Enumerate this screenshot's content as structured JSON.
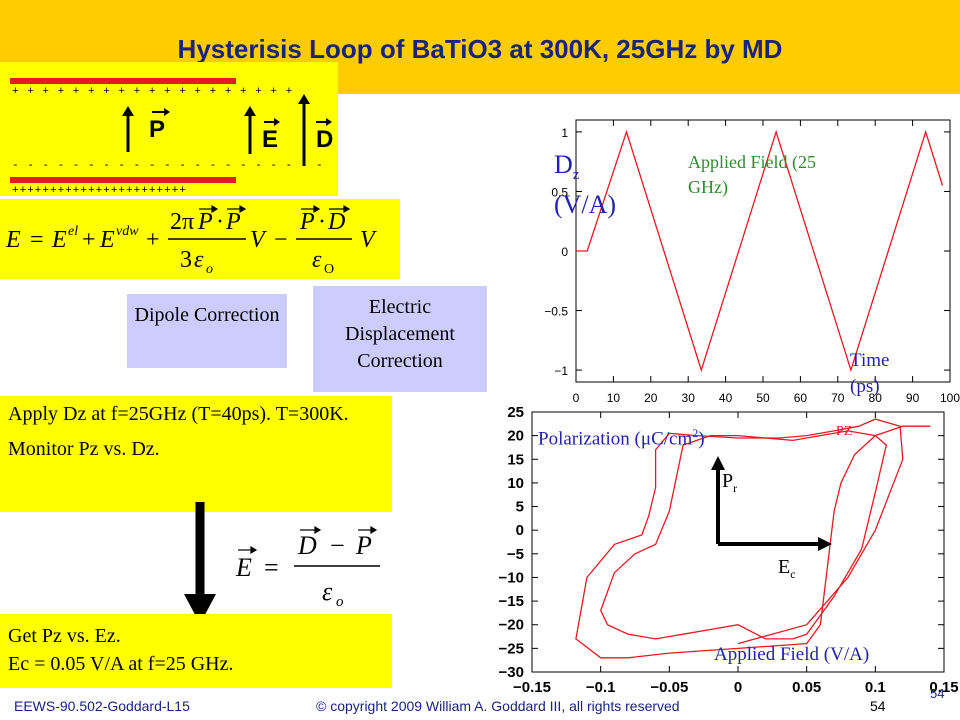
{
  "slide": {
    "title": "Hysterisis Loop of BaTiO3 at 300K, 25GHz by MD",
    "labels": {
      "polarization": "P",
      "e_field": "E",
      "d_field": "D",
      "plus_signs": "+ + + + + + + + + + + + + + + + + + +",
      "minus_signs": "- - - - - - - - - - - - - - - - - - - - -",
      "plus_signs_bottom": "+++++++++++++++++++++++"
    },
    "equations": {
      "energy": "E = E^el + E^vdw + (2πP·P / 3ε_o) V − (P·D / ε_O) V",
      "field": "E = (D − P) / ε_o"
    },
    "boxes": {
      "dipole": "Dipole Correction",
      "displacement": "Electric Displacement Correction",
      "apply_line1": "Apply Dz at f=25GHz (T=40ps). T=300K.",
      "apply_line2": "Monitor Pz vs. Dz.",
      "get_line1": "Get Pz vs. Ez.",
      "get_line2": "Ec = 0.05 V/A at f=25 GHz."
    },
    "footer": {
      "course": "EEWS-90.502-Goddard-L15",
      "copyright": "© copyright 2009 William A. Goddard III, all rights reserved",
      "page": "54",
      "page_corner": "54"
    }
  },
  "colors": {
    "title_bar": "#ffcc00",
    "highlight": "#ffff00",
    "lavender": "#ccccff",
    "navy": "#1a237e",
    "plot_red": "#e31b23",
    "annotation_blue": "#2222aa",
    "annotation_green": "#2e8b2e"
  },
  "chart_data": [
    {
      "type": "line",
      "title": "",
      "overlay_labels": {
        "ylabel_main": "D",
        "ylabel_sub": "z",
        "ylabel_units": "(V/A)",
        "legend": "Applied Field (25 GHz)",
        "legend_line1": "Applied Field (25",
        "legend_line2": "GHz)",
        "xlabel_line1": "Time",
        "xlabel_line2": "(ps)"
      },
      "xlim": [
        0,
        100
      ],
      "ylim": [
        -1.1,
        1.1
      ],
      "xticks": [
        0,
        10,
        20,
        30,
        40,
        50,
        60,
        70,
        80,
        90,
        100
      ],
      "yticks": [
        1,
        0.5,
        0,
        -0.5,
        -1
      ],
      "ytick_labels": [
        "1",
        "0.5",
        "0",
        "−0.5",
        "−1"
      ],
      "series": [
        {
          "x": [
            0,
            3,
            13.5,
            33.5,
            53.5,
            73.5,
            93.5,
            98
          ],
          "y": [
            0,
            0,
            1,
            -1,
            1,
            -1,
            1,
            0.55
          ]
        }
      ]
    },
    {
      "type": "line",
      "title": "",
      "overlay_labels": {
        "ylabel": "Polarization (μC/cm²)",
        "ylabel_pre": "Polarization (",
        "ylabel_mu": "μ",
        "ylabel_post": "C/cm",
        "ylabel_sup": "2",
        "ylabel_close": ")",
        "xlabel": "Applied Field (V/A)",
        "pr_main": "P",
        "pr_sub": "r",
        "ec_main": "E",
        "ec_sub": "c",
        "curve_tag": "PZ"
      },
      "xlim": [
        -0.15,
        0.15
      ],
      "ylim": [
        -30,
        25
      ],
      "xticks": [
        -0.15,
        -0.1,
        -0.05,
        0,
        0.05,
        0.1,
        0.15
      ],
      "xtick_labels": [
        "−0.15",
        "−0.1",
        "−0.05",
        "0",
        "0.05",
        "0.1",
        "0.15"
      ],
      "yticks": [
        25,
        20,
        15,
        10,
        5,
        0,
        -5,
        -10,
        -15,
        -20,
        -25,
        -30
      ],
      "ytick_labels": [
        "25",
        "20",
        "15",
        "10",
        "5",
        "0",
        "−5",
        "−10",
        "−15",
        "−20",
        "−25",
        "−30"
      ],
      "series": [
        {
          "x": [
            0.0,
            0.05,
            0.08,
            0.1,
            0.12,
            0.118,
            0.1,
            0.088,
            0.07,
            0.05,
            0.03,
            0.0,
            -0.03,
            -0.05,
            -0.06,
            -0.06,
            -0.065,
            -0.07,
            -0.09,
            -0.11,
            -0.118,
            -0.1,
            -0.08,
            -0.05,
            0.0,
            0.05,
            0.06,
            0.065,
            0.07,
            0.075,
            0.085,
            0.1,
            0.12,
            0.14
          ],
          "y": [
            -24,
            -20,
            -10,
            0,
            15,
            22,
            23.5,
            22,
            21,
            20,
            19.5,
            19.5,
            20,
            20.5,
            17,
            9,
            3,
            -1,
            -3,
            -10,
            -23,
            -27,
            -27,
            -26,
            -25,
            -24,
            -20,
            -8,
            4,
            10,
            16,
            20,
            22,
            22
          ]
        },
        {
          "x": [
            0.05,
            0.07,
            0.09,
            0.1,
            0.108,
            0.1,
            0.08,
            0.06,
            0.04,
            0.02,
            0.0,
            -0.02,
            -0.04,
            -0.045,
            -0.05,
            -0.06,
            -0.075,
            -0.09,
            -0.1,
            -0.095,
            -0.08,
            -0.06,
            -0.04,
            -0.02,
            0.0,
            0.02,
            0.04,
            0.05
          ],
          "y": [
            -22,
            -14,
            -4,
            8,
            18,
            20,
            21,
            20,
            19,
            19.5,
            20,
            20,
            18,
            11,
            4,
            -3,
            -5,
            -9,
            -17,
            -20,
            -22,
            -23,
            -22,
            -21,
            -20,
            -23,
            -23,
            -22
          ]
        }
      ]
    }
  ]
}
